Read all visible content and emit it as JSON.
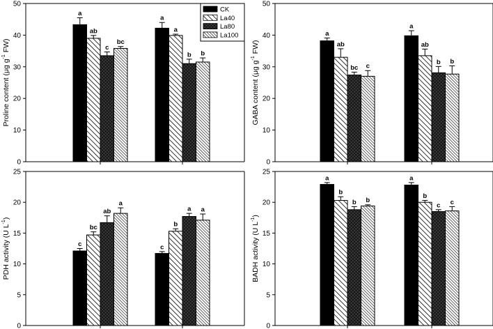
{
  "colors": {
    "ink": "#000000",
    "background": "#ffffff"
  },
  "legend": {
    "placement": "top-right of panel A",
    "entries": [
      {
        "name": "CK",
        "pattern": "solid-black"
      },
      {
        "name": "La40",
        "pattern": "hatch-wide"
      },
      {
        "name": "La80",
        "pattern": "crosshatch-dark"
      },
      {
        "name": "La100",
        "pattern": "hatch-dense"
      }
    ]
  },
  "chart_data": [
    {
      "id": "A",
      "type": "bar",
      "ylabel_main": "Proline content (μg g",
      "ylabel_sup": "-1",
      "ylabel_tail": " FW)",
      "ylim": [
        0,
        50
      ],
      "yticks": [
        0,
        10,
        20,
        30,
        40,
        50
      ],
      "series": [
        {
          "name": "CK",
          "groups": [
            {
              "value": 43.3,
              "err": 2.2,
              "sig": "a"
            },
            {
              "value": 42.2,
              "err": 1.8,
              "sig": "a"
            }
          ]
        },
        {
          "name": "La40",
          "groups": [
            {
              "value": 39.0,
              "err": 0.9,
              "sig": "ab"
            },
            {
              "value": 39.9,
              "err": 0.4,
              "sig": "a"
            }
          ]
        },
        {
          "name": "La80",
          "groups": [
            {
              "value": 33.5,
              "err": 1.2,
              "sig": "c"
            },
            {
              "value": 31.0,
              "err": 1.4,
              "sig": "b"
            }
          ]
        },
        {
          "name": "La100",
          "groups": [
            {
              "value": 35.8,
              "err": 0.6,
              "sig": "bc"
            },
            {
              "value": 31.5,
              "err": 1.3,
              "sig": "b"
            }
          ]
        }
      ]
    },
    {
      "id": "B",
      "type": "bar",
      "ylabel_main": "GABA content (μg g",
      "ylabel_sup": "-1",
      "ylabel_tail": " FW)",
      "ylim": [
        0,
        50
      ],
      "yticks": [
        0,
        10,
        20,
        30,
        40,
        50
      ],
      "series": [
        {
          "name": "CK",
          "groups": [
            {
              "value": 38.2,
              "err": 0.9,
              "sig": "a"
            },
            {
              "value": 39.8,
              "err": 1.6,
              "sig": "a"
            }
          ]
        },
        {
          "name": "La40",
          "groups": [
            {
              "value": 33.0,
              "err": 2.7,
              "sig": "ab"
            },
            {
              "value": 33.5,
              "err": 2.1,
              "sig": "ab"
            }
          ]
        },
        {
          "name": "La80",
          "groups": [
            {
              "value": 27.4,
              "err": 0.9,
              "sig": "bc"
            },
            {
              "value": 28.1,
              "err": 2.0,
              "sig": "b"
            }
          ]
        },
        {
          "name": "La100",
          "groups": [
            {
              "value": 27.0,
              "err": 1.8,
              "sig": "c"
            },
            {
              "value": 27.7,
              "err": 2.6,
              "sig": "b"
            }
          ]
        }
      ]
    },
    {
      "id": "C",
      "type": "bar",
      "ylabel_main": "PDH activity (U L",
      "ylabel_sup": "-1",
      "ylabel_tail": ")",
      "ylim": [
        0,
        25
      ],
      "yticks": [
        0,
        5,
        10,
        15,
        20,
        25
      ],
      "series": [
        {
          "name": "CK",
          "groups": [
            {
              "value": 12.1,
              "err": 0.4,
              "sig": "c"
            },
            {
              "value": 11.7,
              "err": 0.3,
              "sig": "c"
            }
          ]
        },
        {
          "name": "La40",
          "groups": [
            {
              "value": 14.7,
              "err": 0.5,
              "sig": "bc"
            },
            {
              "value": 15.3,
              "err": 0.4,
              "sig": "b"
            }
          ]
        },
        {
          "name": "La80",
          "groups": [
            {
              "value": 16.7,
              "err": 1.1,
              "sig": "ab"
            },
            {
              "value": 17.7,
              "err": 0.5,
              "sig": "a"
            }
          ]
        },
        {
          "name": "La100",
          "groups": [
            {
              "value": 18.2,
              "err": 0.9,
              "sig": "a"
            },
            {
              "value": 17.1,
              "err": 1.0,
              "sig": "a"
            }
          ]
        }
      ]
    },
    {
      "id": "D",
      "type": "bar",
      "ylabel_main": "BADH activity (U L",
      "ylabel_sup": "-1",
      "ylabel_tail": ")",
      "ylim": [
        0,
        25
      ],
      "yticks": [
        0,
        5,
        10,
        15,
        20,
        25
      ],
      "series": [
        {
          "name": "CK",
          "groups": [
            {
              "value": 22.9,
              "err": 0.3,
              "sig": "a"
            },
            {
              "value": 22.8,
              "err": 0.4,
              "sig": "a"
            }
          ]
        },
        {
          "name": "La40",
          "groups": [
            {
              "value": 20.3,
              "err": 0.6,
              "sig": "b"
            },
            {
              "value": 20.0,
              "err": 0.3,
              "sig": "b"
            }
          ]
        },
        {
          "name": "La80",
          "groups": [
            {
              "value": 18.8,
              "err": 0.5,
              "sig": "b"
            },
            {
              "value": 18.5,
              "err": 0.3,
              "sig": "c"
            }
          ]
        },
        {
          "name": "La100",
          "groups": [
            {
              "value": 19.4,
              "err": 0.2,
              "sig": "b"
            },
            {
              "value": 18.6,
              "err": 0.7,
              "sig": "c"
            }
          ]
        }
      ]
    }
  ]
}
